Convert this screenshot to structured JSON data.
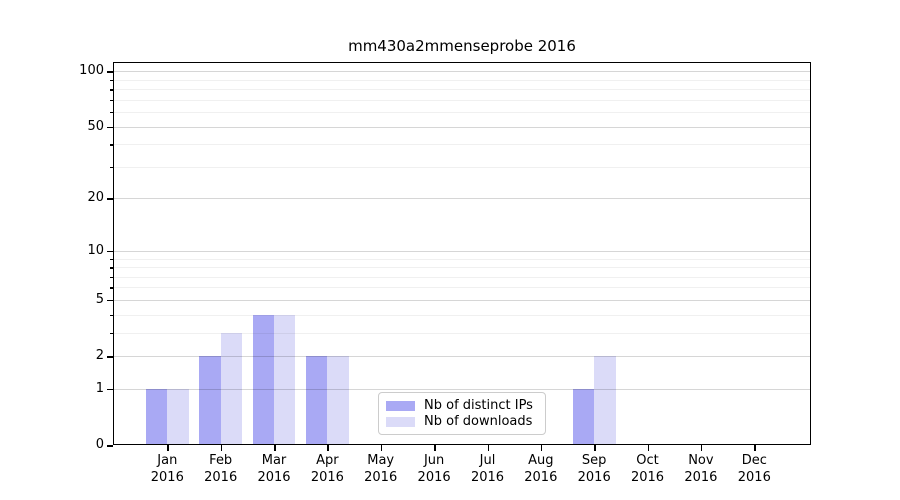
{
  "title": "mm430a2mmenseprobe 2016",
  "colors": {
    "distinct_ips": "#a9a9f4",
    "downloads": "#dbdbf8",
    "grid_major": "rgba(0,0,0,0.16)",
    "grid_minor": "rgba(0,0,0,0.06)",
    "spine": "#000000",
    "legend_border": "#cccccc",
    "background": "#ffffff"
  },
  "legend": {
    "items": [
      {
        "label": "Nb of distinct IPs",
        "color": "#a9a9f4"
      },
      {
        "label": "Nb of downloads",
        "color": "#dbdbf8"
      }
    ]
  },
  "x_axis": {
    "months": [
      "Jan",
      "Feb",
      "Mar",
      "Apr",
      "May",
      "Jun",
      "Jul",
      "Aug",
      "Sep",
      "Oct",
      "Nov",
      "Dec"
    ],
    "year": "2016"
  },
  "y_axis": {
    "scale": "log1p",
    "major_ticks": [
      0,
      1,
      2,
      5,
      10,
      20,
      50,
      100
    ],
    "minor_ticks": [
      3,
      4,
      6,
      7,
      8,
      9,
      30,
      40,
      60,
      70,
      80,
      90
    ],
    "max": 112
  },
  "chart_data": {
    "type": "bar",
    "title": "mm430a2mmenseprobe 2016",
    "categories": [
      "Jan 2016",
      "Feb 2016",
      "Mar 2016",
      "Apr 2016",
      "May 2016",
      "Jun 2016",
      "Jul 2016",
      "Aug 2016",
      "Sep 2016",
      "Oct 2016",
      "Nov 2016",
      "Dec 2016"
    ],
    "series": [
      {
        "name": "Nb of distinct IPs",
        "values": [
          1,
          2,
          4,
          2,
          0,
          0,
          0,
          0,
          1,
          0,
          0,
          0
        ]
      },
      {
        "name": "Nb of downloads",
        "values": [
          1,
          3,
          4,
          2,
          0,
          0,
          0,
          0,
          2,
          0,
          0,
          0
        ]
      }
    ],
    "xlabel": "",
    "ylabel": "",
    "ylim": [
      0,
      112
    ],
    "yscale": "log1p",
    "grid": true,
    "legend_position": "lower-center"
  }
}
